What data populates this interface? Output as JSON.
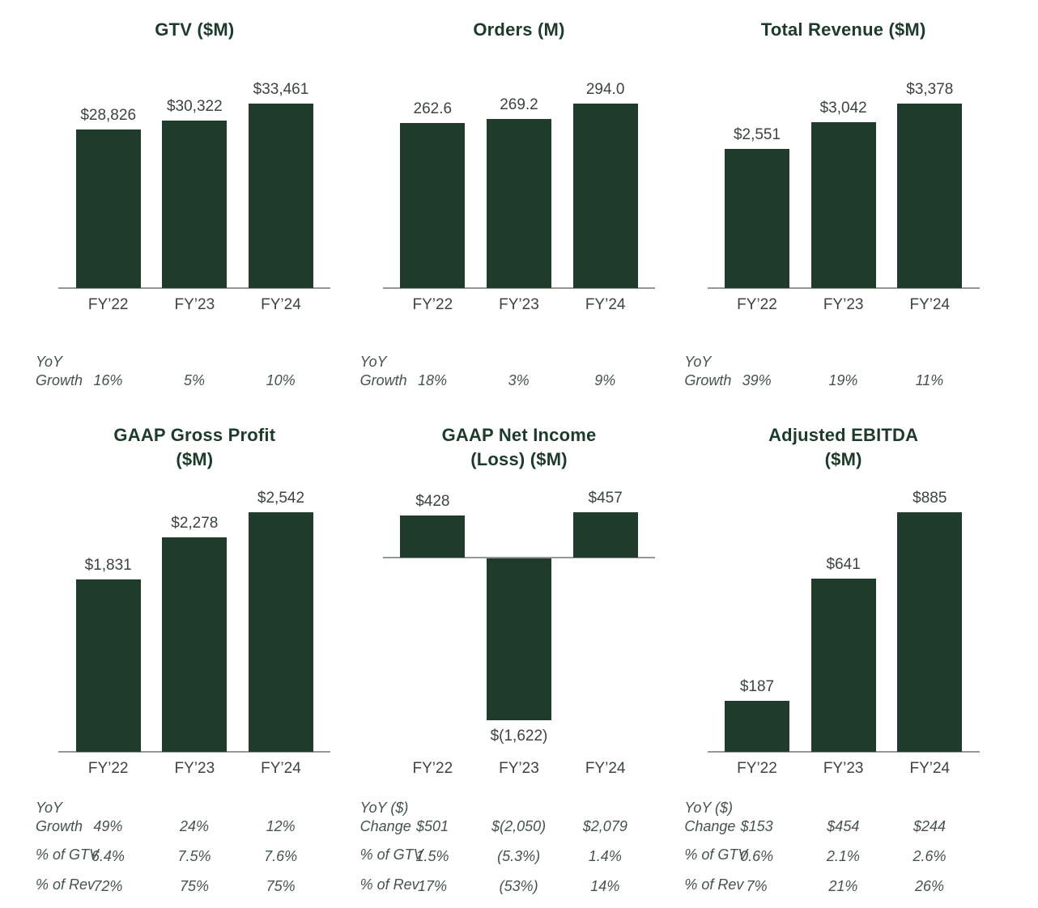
{
  "colors": {
    "bar": "#1e3b2c",
    "title": "#1d3b2c",
    "label": "#3d4440",
    "stats": "#45534c",
    "axis": "#979797",
    "background": "#ffffff"
  },
  "chart_data": [
    {
      "id": "gtv",
      "type": "bar",
      "title": "GTV ($M)",
      "title_lines": [
        "GTV ($M)"
      ],
      "categories": [
        "FY’22",
        "FY’23",
        "FY’24"
      ],
      "values": [
        28826,
        30322,
        33461
      ],
      "value_labels": [
        "$28,826",
        "$30,322",
        "$33,461"
      ],
      "ylim": [
        0,
        33461
      ],
      "stats": [
        {
          "label": "YoY Growth",
          "values": [
            "16%",
            "5%",
            "10%"
          ]
        }
      ]
    },
    {
      "id": "orders",
      "type": "bar",
      "title": "Orders (M)",
      "title_lines": [
        "Orders (M)"
      ],
      "categories": [
        "FY’22",
        "FY’23",
        "FY’24"
      ],
      "values": [
        262.6,
        269.2,
        294.0
      ],
      "value_labels": [
        "262.6",
        "269.2",
        "294.0"
      ],
      "ylim": [
        0,
        294
      ],
      "stats": [
        {
          "label": "YoY Growth",
          "values": [
            "18%",
            "3%",
            "9%"
          ]
        }
      ]
    },
    {
      "id": "total-revenue",
      "type": "bar",
      "title": "Total Revenue ($M)",
      "title_lines": [
        "Total Revenue ($M)"
      ],
      "categories": [
        "FY’22",
        "FY’23",
        "FY’24"
      ],
      "values": [
        2551,
        3042,
        3378
      ],
      "value_labels": [
        "$2,551",
        "$3,042",
        "$3,378"
      ],
      "ylim": [
        0,
        3378
      ],
      "stats": [
        {
          "label": "YoY Growth",
          "values": [
            "39%",
            "19%",
            "11%"
          ]
        }
      ]
    },
    {
      "id": "gaap-gross-profit",
      "type": "bar",
      "title": "GAAP Gross Profit ($M)",
      "title_lines": [
        "GAAP Gross Profit",
        "($M)"
      ],
      "categories": [
        "FY’22",
        "FY’23",
        "FY’24"
      ],
      "values": [
        1831,
        2278,
        2542
      ],
      "value_labels": [
        "$1,831",
        "$2,278",
        "$2,542"
      ],
      "ylim": [
        0,
        2542
      ],
      "stats": [
        {
          "label": "YoY Growth",
          "values": [
            "49%",
            "24%",
            "12%"
          ]
        },
        {
          "label": "% of GTV",
          "values": [
            "6.4%",
            "7.5%",
            "7.6%"
          ]
        },
        {
          "label": "% of Rev",
          "values": [
            "72%",
            "75%",
            "75%"
          ]
        }
      ]
    },
    {
      "id": "gaap-net-income-loss",
      "type": "bar",
      "title": "GAAP Net Income (Loss) ($M)",
      "title_lines": [
        "GAAP Net Income",
        "(Loss) ($M)"
      ],
      "categories": [
        "FY’22",
        "FY’23",
        "FY’24"
      ],
      "values": [
        428,
        -1622,
        457
      ],
      "value_labels": [
        "$428",
        "$(1,622)",
        "$457"
      ],
      "ylim": [
        -1622,
        457
      ],
      "stats": [
        {
          "label": "YoY ($) Change",
          "values": [
            "$501",
            "$(2,050)",
            "$2,079"
          ]
        },
        {
          "label": "% of GTV",
          "values": [
            "1.5%",
            "(5.3%)",
            "1.4%"
          ]
        },
        {
          "label": "% of Rev",
          "values": [
            "17%",
            "(53%)",
            "14%"
          ]
        }
      ]
    },
    {
      "id": "adjusted-ebitda",
      "type": "bar",
      "title": "Adjusted EBITDA ($M)",
      "title_lines": [
        "Adjusted EBITDA",
        "($M)"
      ],
      "categories": [
        "FY’22",
        "FY’23",
        "FY’24"
      ],
      "values": [
        187,
        641,
        885
      ],
      "value_labels": [
        "$187",
        "$641",
        "$885"
      ],
      "ylim": [
        0,
        885
      ],
      "stats": [
        {
          "label": "YoY ($) Change",
          "values": [
            "$153",
            "$454",
            "$244"
          ]
        },
        {
          "label": "% of GTV",
          "values": [
            "0.6%",
            "2.1%",
            "2.6%"
          ]
        },
        {
          "label": "% of Rev",
          "values": [
            "7%",
            "21%",
            "26%"
          ]
        }
      ]
    }
  ]
}
